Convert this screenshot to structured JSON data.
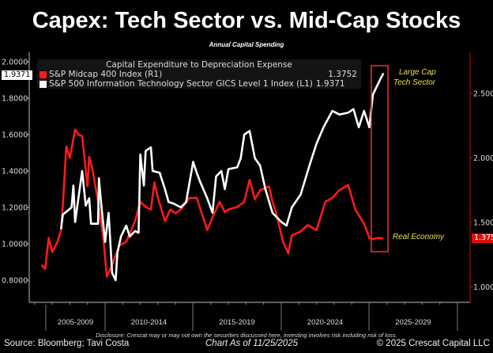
{
  "header": {
    "title": "Capex: Tech Sector vs. Mid-Cap Stocks",
    "subtitle": "Annual Capital Spending"
  },
  "chart_data": {
    "type": "line",
    "title": "Capital Expenditure to Depreciation Expense",
    "left_axis": {
      "ylim": [
        0.75,
        2.05
      ],
      "ticks": [
        "2.0000",
        "1.8000",
        "1.6000",
        "1.4000",
        "1.2000",
        "1.0000",
        "0.8000"
      ]
    },
    "right_axis": {
      "ylim": [
        0.95,
        2.8
      ],
      "ticks": [
        "2.5000",
        "2.0000",
        "1.5000",
        "1.0000"
      ]
    },
    "x_bands": [
      "2005-2009",
      "2010-2014",
      "2015-2019",
      "2020-2024",
      "2025-2029"
    ],
    "grid": false,
    "legend_placement": "top-left",
    "series": [
      {
        "name": "S&P Midcap 400 Index  (R1)",
        "axis": "right",
        "color": "#ff1a1a",
        "last": "1.3752",
        "x": [
          2006.4,
          2006.6,
          2006.8,
          2007.0,
          2007.3,
          2007.5,
          2007.6,
          2007.8,
          2008.0,
          2008.3,
          2008.5,
          2008.7,
          2009.0,
          2009.1,
          2009.3,
          2009.6,
          2009.9,
          2010.1,
          2010.4,
          2010.8,
          2011.2,
          2011.7,
          2012.0,
          2012.3,
          2012.6,
          2012.8,
          2013.0,
          2013.4,
          2013.7,
          2014.0,
          2014.3,
          2014.8,
          2015.2,
          2015.8,
          2016.1,
          2016.5,
          2016.8,
          2017.0,
          2017.5,
          2017.9,
          2018.2,
          2018.5,
          2018.8,
          2019.3,
          2019.5,
          2019.7,
          2020.1,
          2020.4,
          2020.6,
          2021.1,
          2021.5,
          2022.0,
          2022.5,
          2022.9,
          2023.3,
          2023.8,
          2024.2,
          2024.7,
          2025.0,
          2025.2,
          2025.5,
          2025.8
        ],
        "y": [
          1.17,
          1.14,
          1.38,
          1.27,
          1.35,
          1.44,
          1.63,
          2.09,
          2.0,
          2.22,
          2.18,
          2.17,
          1.78,
          2.01,
          1.9,
          1.66,
          1.38,
          1.08,
          1.17,
          1.32,
          1.35,
          1.51,
          1.66,
          1.62,
          1.6,
          1.81,
          1.69,
          1.51,
          1.6,
          1.57,
          1.6,
          1.69,
          1.69,
          1.44,
          1.54,
          1.66,
          1.58,
          1.6,
          1.62,
          1.66,
          1.83,
          1.68,
          1.75,
          1.78,
          1.66,
          1.58,
          1.35,
          1.26,
          1.4,
          1.43,
          1.48,
          1.44,
          1.66,
          1.69,
          1.75,
          1.79,
          1.6,
          1.49,
          1.38,
          1.37,
          1.38,
          1.3752
        ]
      },
      {
        "name": "S&P 500 Information Technology Sector GICS Level 1 Index  (L1)",
        "axis": "left",
        "color": "#ffffff",
        "last": "1.9371",
        "x": [
          2007.5,
          2007.6,
          2008.1,
          2008.2,
          2008.3,
          2008.7,
          2008.9,
          2009.1,
          2009.2,
          2009.6,
          2009.65,
          2009.8,
          2010.0,
          2010.2,
          2010.4,
          2010.6,
          2010.7,
          2010.9,
          2011.2,
          2011.4,
          2011.7,
          2011.9,
          2012.0,
          2012.2,
          2012.3,
          2012.6,
          2012.7,
          2013.1,
          2013.4,
          2013.6,
          2013.9,
          2014.3,
          2014.6,
          2015.0,
          2015.2,
          2015.4,
          2015.8,
          2016.1,
          2016.3,
          2016.6,
          2016.8,
          2017.0,
          2017.5,
          2017.7,
          2017.9,
          2018.2,
          2018.5,
          2018.8,
          2019.1,
          2019.5,
          2020.0,
          2020.3,
          2020.6,
          2021.1,
          2021.6,
          2022.0,
          2022.4,
          2022.9,
          2023.3,
          2023.8,
          2024.1,
          2024.4,
          2024.7,
          2025.0,
          2025.2,
          2025.6,
          2025.8
        ],
        "y": [
          1.08,
          1.16,
          1.2,
          1.32,
          1.12,
          1.4,
          1.21,
          1.25,
          1.11,
          1.11,
          1.36,
          1.2,
          1.01,
          1.17,
          0.84,
          0.8,
          0.95,
          1.04,
          1.1,
          1.04,
          1.07,
          1.06,
          1.49,
          1.32,
          1.51,
          1.53,
          1.4,
          1.39,
          1.3,
          1.23,
          1.22,
          1.2,
          1.23,
          1.45,
          1.39,
          1.34,
          1.25,
          1.17,
          1.37,
          1.4,
          1.3,
          1.41,
          1.42,
          1.47,
          1.6,
          1.62,
          1.47,
          1.43,
          1.3,
          1.17,
          1.12,
          1.1,
          1.2,
          1.27,
          1.43,
          1.55,
          1.64,
          1.73,
          1.71,
          1.72,
          1.74,
          1.64,
          1.73,
          1.64,
          1.82,
          1.9,
          1.9371
        ]
      }
    ],
    "annotations": [
      "Large Cap Tech Sector",
      "Real Economy"
    ],
    "highlight_box_color": "#ff2a2a",
    "annotation_color": "#e8e24c"
  },
  "legend": {
    "title": "Capital Expenditure to Depreciation Expense"
  },
  "annotations": {
    "top_line1": "Large Cap",
    "top_line2": "Tech Sector",
    "bottom": "Real Economy"
  },
  "footer": {
    "disclosure": "Disclosure: Crescat may or may not own the securities discussed here, investing involves risk including risk of loss.",
    "source": "Source: Bloomberg; Tavi Costa",
    "as_of": "Chart As of 11/25/2025",
    "copyright": "© 2025 Crescat Capital LLC"
  }
}
